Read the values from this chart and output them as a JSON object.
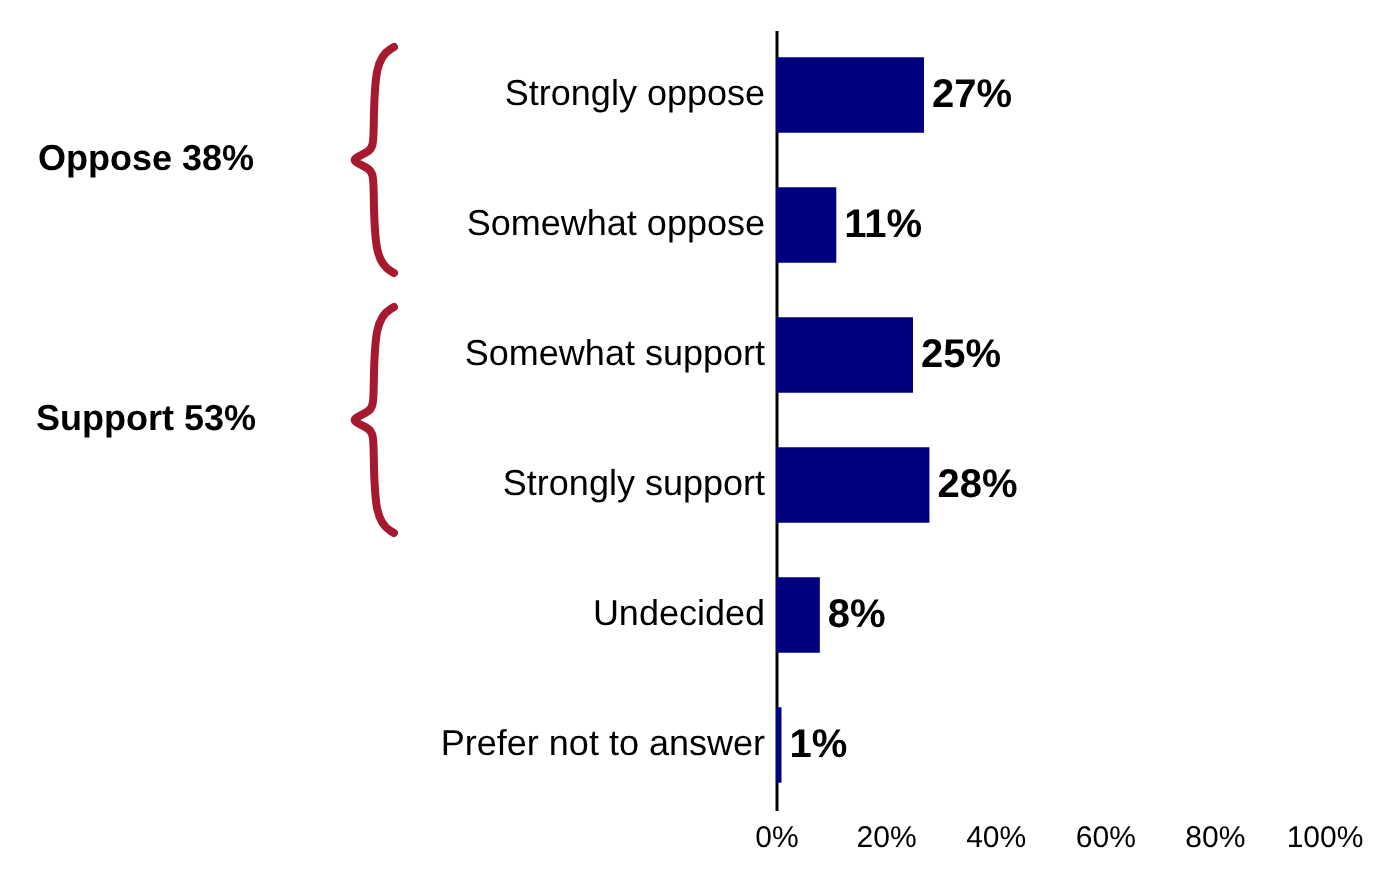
{
  "chart_data": {
    "type": "bar",
    "orientation": "horizontal",
    "categories": [
      "Strongly oppose",
      "Somewhat oppose",
      "Somewhat support",
      "Strongly support",
      "Undecided",
      "Prefer not to answer"
    ],
    "values": [
      27,
      11,
      25,
      28,
      8,
      1
    ],
    "value_labels": [
      "27%",
      "11%",
      "25%",
      "28%",
      "8%",
      "1%"
    ],
    "color": "#000080",
    "xlim": [
      0,
      100
    ],
    "xticks": [
      {
        "value": 0,
        "label": "0%"
      },
      {
        "value": 20,
        "label": "20%"
      },
      {
        "value": 40,
        "label": "40%"
      },
      {
        "value": 60,
        "label": "60%"
      },
      {
        "value": 80,
        "label": "80%"
      },
      {
        "value": 100,
        "label": "100%"
      }
    ],
    "grid": false,
    "annotations": [
      "Oppose 38%",
      "Support 53%"
    ]
  }
}
